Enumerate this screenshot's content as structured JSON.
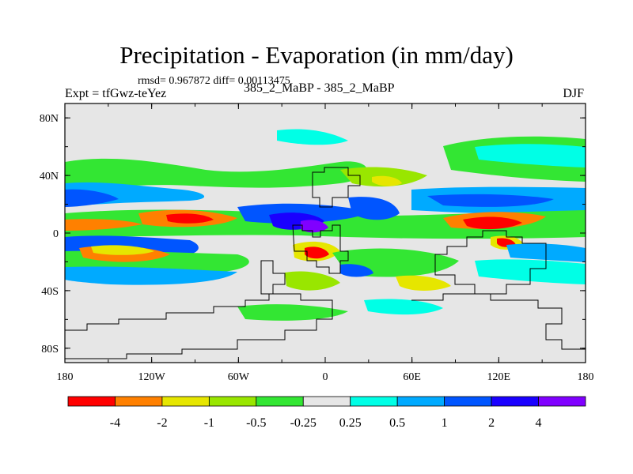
{
  "chart_data": {
    "type": "heatmap",
    "title": "Precipitation - Evaporation (in mm/day)",
    "stats_line": "rmsd= 0.967872 diff= 0.00113475",
    "left_label": "Expt = tfGwz-teYez",
    "subtitle": "385_2_MaBP - 385_2_MaBP",
    "season": "DJF",
    "x_ticks": [
      "180",
      "120W",
      "60W",
      "0",
      "60E",
      "120E",
      "180"
    ],
    "x_range": [
      -180,
      180
    ],
    "y_ticks": [
      "80N",
      "40N",
      "0",
      "40S",
      "80S"
    ],
    "y_range": [
      -90,
      90
    ],
    "colorbar": {
      "labels": [
        "-4",
        "-2",
        "-1",
        "-0.5",
        "-0.25",
        "0.25",
        "0.5",
        "1",
        "2",
        "4"
      ],
      "colors": [
        "#ff0000",
        "#ff8000",
        "#e6e600",
        "#99e600",
        "#33e633",
        "#e6e6e6",
        "#00ffe6",
        "#00aaff",
        "#0055ff",
        "#1a00ff",
        "#8000ff"
      ]
    }
  }
}
